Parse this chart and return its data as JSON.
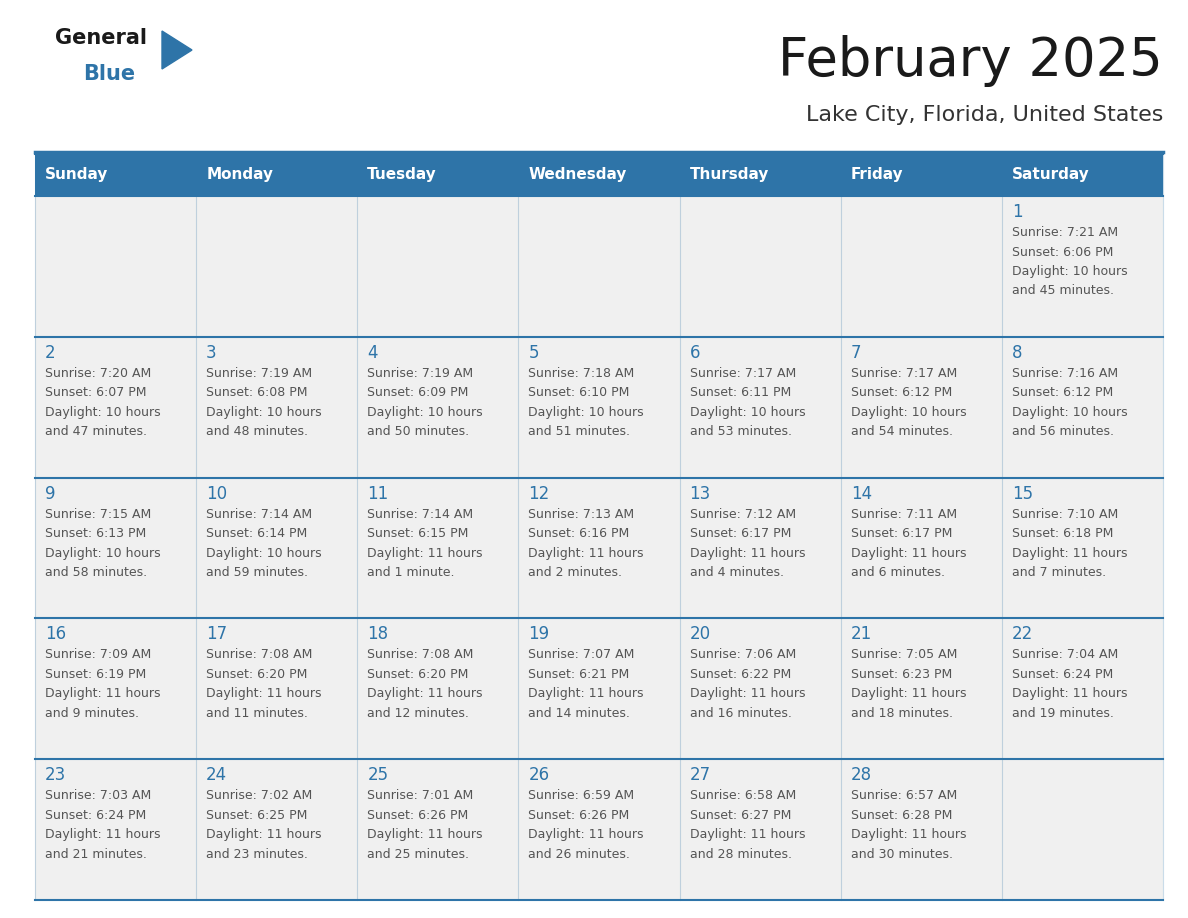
{
  "title": "February 2025",
  "subtitle": "Lake City, Florida, United States",
  "days_of_week": [
    "Sunday",
    "Monday",
    "Tuesday",
    "Wednesday",
    "Thursday",
    "Friday",
    "Saturday"
  ],
  "header_bg": "#2E74A8",
  "header_text": "#FFFFFF",
  "cell_bg": "#F0F0F0",
  "cell_text": "#555555",
  "day_num_color": "#2E74A8",
  "border_color": "#2E74A8",
  "title_color": "#1a1a1a",
  "subtitle_color": "#333333",
  "logo_general_color": "#1a1a1a",
  "logo_blue_color": "#2E74A8",
  "calendar": [
    [
      null,
      null,
      null,
      null,
      null,
      null,
      {
        "day": 1,
        "sunrise": "7:21 AM",
        "sunset": "6:06 PM",
        "daylight_line1": "10 hours",
        "daylight_line2": "and 45 minutes."
      }
    ],
    [
      {
        "day": 2,
        "sunrise": "7:20 AM",
        "sunset": "6:07 PM",
        "daylight_line1": "10 hours",
        "daylight_line2": "and 47 minutes."
      },
      {
        "day": 3,
        "sunrise": "7:19 AM",
        "sunset": "6:08 PM",
        "daylight_line1": "10 hours",
        "daylight_line2": "and 48 minutes."
      },
      {
        "day": 4,
        "sunrise": "7:19 AM",
        "sunset": "6:09 PM",
        "daylight_line1": "10 hours",
        "daylight_line2": "and 50 minutes."
      },
      {
        "day": 5,
        "sunrise": "7:18 AM",
        "sunset": "6:10 PM",
        "daylight_line1": "10 hours",
        "daylight_line2": "and 51 minutes."
      },
      {
        "day": 6,
        "sunrise": "7:17 AM",
        "sunset": "6:11 PM",
        "daylight_line1": "10 hours",
        "daylight_line2": "and 53 minutes."
      },
      {
        "day": 7,
        "sunrise": "7:17 AM",
        "sunset": "6:12 PM",
        "daylight_line1": "10 hours",
        "daylight_line2": "and 54 minutes."
      },
      {
        "day": 8,
        "sunrise": "7:16 AM",
        "sunset": "6:12 PM",
        "daylight_line1": "10 hours",
        "daylight_line2": "and 56 minutes."
      }
    ],
    [
      {
        "day": 9,
        "sunrise": "7:15 AM",
        "sunset": "6:13 PM",
        "daylight_line1": "10 hours",
        "daylight_line2": "and 58 minutes."
      },
      {
        "day": 10,
        "sunrise": "7:14 AM",
        "sunset": "6:14 PM",
        "daylight_line1": "10 hours",
        "daylight_line2": "and 59 minutes."
      },
      {
        "day": 11,
        "sunrise": "7:14 AM",
        "sunset": "6:15 PM",
        "daylight_line1": "11 hours",
        "daylight_line2": "and 1 minute."
      },
      {
        "day": 12,
        "sunrise": "7:13 AM",
        "sunset": "6:16 PM",
        "daylight_line1": "11 hours",
        "daylight_line2": "and 2 minutes."
      },
      {
        "day": 13,
        "sunrise": "7:12 AM",
        "sunset": "6:17 PM",
        "daylight_line1": "11 hours",
        "daylight_line2": "and 4 minutes."
      },
      {
        "day": 14,
        "sunrise": "7:11 AM",
        "sunset": "6:17 PM",
        "daylight_line1": "11 hours",
        "daylight_line2": "and 6 minutes."
      },
      {
        "day": 15,
        "sunrise": "7:10 AM",
        "sunset": "6:18 PM",
        "daylight_line1": "11 hours",
        "daylight_line2": "and 7 minutes."
      }
    ],
    [
      {
        "day": 16,
        "sunrise": "7:09 AM",
        "sunset": "6:19 PM",
        "daylight_line1": "11 hours",
        "daylight_line2": "and 9 minutes."
      },
      {
        "day": 17,
        "sunrise": "7:08 AM",
        "sunset": "6:20 PM",
        "daylight_line1": "11 hours",
        "daylight_line2": "and 11 minutes."
      },
      {
        "day": 18,
        "sunrise": "7:08 AM",
        "sunset": "6:20 PM",
        "daylight_line1": "11 hours",
        "daylight_line2": "and 12 minutes."
      },
      {
        "day": 19,
        "sunrise": "7:07 AM",
        "sunset": "6:21 PM",
        "daylight_line1": "11 hours",
        "daylight_line2": "and 14 minutes."
      },
      {
        "day": 20,
        "sunrise": "7:06 AM",
        "sunset": "6:22 PM",
        "daylight_line1": "11 hours",
        "daylight_line2": "and 16 minutes."
      },
      {
        "day": 21,
        "sunrise": "7:05 AM",
        "sunset": "6:23 PM",
        "daylight_line1": "11 hours",
        "daylight_line2": "and 18 minutes."
      },
      {
        "day": 22,
        "sunrise": "7:04 AM",
        "sunset": "6:24 PM",
        "daylight_line1": "11 hours",
        "daylight_line2": "and 19 minutes."
      }
    ],
    [
      {
        "day": 23,
        "sunrise": "7:03 AM",
        "sunset": "6:24 PM",
        "daylight_line1": "11 hours",
        "daylight_line2": "and 21 minutes."
      },
      {
        "day": 24,
        "sunrise": "7:02 AM",
        "sunset": "6:25 PM",
        "daylight_line1": "11 hours",
        "daylight_line2": "and 23 minutes."
      },
      {
        "day": 25,
        "sunrise": "7:01 AM",
        "sunset": "6:26 PM",
        "daylight_line1": "11 hours",
        "daylight_line2": "and 25 minutes."
      },
      {
        "day": 26,
        "sunrise": "6:59 AM",
        "sunset": "6:26 PM",
        "daylight_line1": "11 hours",
        "daylight_line2": "and 26 minutes."
      },
      {
        "day": 27,
        "sunrise": "6:58 AM",
        "sunset": "6:27 PM",
        "daylight_line1": "11 hours",
        "daylight_line2": "and 28 minutes."
      },
      {
        "day": 28,
        "sunrise": "6:57 AM",
        "sunset": "6:28 PM",
        "daylight_line1": "11 hours",
        "daylight_line2": "and 30 minutes."
      },
      null
    ]
  ]
}
